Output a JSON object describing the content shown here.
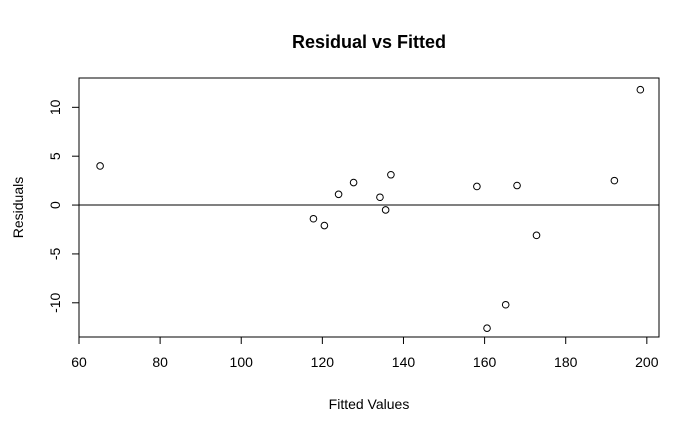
{
  "chart_data": {
    "type": "scatter",
    "title": "Residual vs Fitted",
    "xlabel": "Fitted Values",
    "ylabel": "Residuals",
    "xlim": [
      60,
      203
    ],
    "ylim": [
      -13.5,
      13
    ],
    "xticks": [
      60,
      80,
      100,
      120,
      140,
      160,
      180,
      200
    ],
    "yticks": [
      -10,
      -5,
      0,
      5,
      10
    ],
    "xtick_labels": [
      "60",
      "80",
      "100",
      "120",
      "140",
      "160",
      "180",
      "200"
    ],
    "ytick_labels": [
      "-10",
      "-5",
      "0",
      "5",
      "10"
    ],
    "reference_line": {
      "y": 0
    },
    "marker": "open-circle",
    "grid": false,
    "points": [
      {
        "x": 65.2,
        "y": 4.0
      },
      {
        "x": 117.8,
        "y": -1.4
      },
      {
        "x": 120.5,
        "y": -2.1
      },
      {
        "x": 124.0,
        "y": 1.1
      },
      {
        "x": 127.7,
        "y": 2.3
      },
      {
        "x": 134.2,
        "y": 0.8
      },
      {
        "x": 135.6,
        "y": -0.5
      },
      {
        "x": 136.9,
        "y": 3.1
      },
      {
        "x": 158.1,
        "y": 1.9
      },
      {
        "x": 160.6,
        "y": -12.6
      },
      {
        "x": 165.2,
        "y": -10.2
      },
      {
        "x": 168.0,
        "y": 2.0
      },
      {
        "x": 172.8,
        "y": -3.1
      },
      {
        "x": 192.0,
        "y": 2.5
      },
      {
        "x": 198.4,
        "y": 11.8
      }
    ]
  }
}
